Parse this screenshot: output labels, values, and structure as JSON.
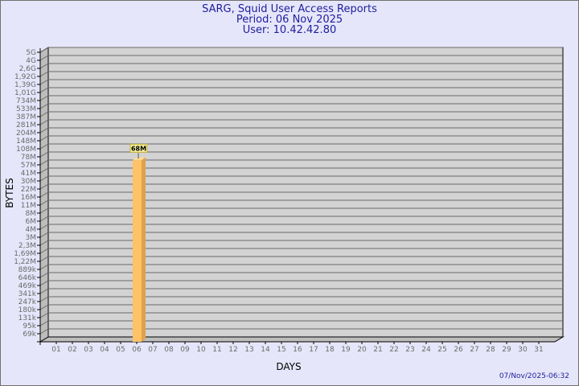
{
  "chart_data": {
    "type": "bar",
    "title": [
      "SARG, Squid User Access Reports",
      "Period: 06 Nov 2025",
      "User: 10.42.42.80"
    ],
    "xlabel": "DAYS",
    "ylabel": "BYTES",
    "yscale": "log",
    "y_tick_labels": [
      "69k",
      "95k",
      "131k",
      "180k",
      "247k",
      "341k",
      "469k",
      "646k",
      "889k",
      "1,22M",
      "1,69M",
      "2,3M",
      "3M",
      "4M",
      "6M",
      "8M",
      "11M",
      "16M",
      "22M",
      "30M",
      "41M",
      "57M",
      "78M",
      "108M",
      "148M",
      "204M",
      "281M",
      "387M",
      "533M",
      "734M",
      "1,01G",
      "1,39G",
      "1,92G",
      "2,6G",
      "4G",
      "5G"
    ],
    "categories": [
      "01",
      "02",
      "03",
      "04",
      "05",
      "06",
      "07",
      "08",
      "09",
      "10",
      "11",
      "12",
      "13",
      "14",
      "15",
      "16",
      "17",
      "18",
      "19",
      "20",
      "21",
      "22",
      "23",
      "24",
      "25",
      "26",
      "27",
      "28",
      "29",
      "30",
      "31"
    ],
    "bars": [
      {
        "category": "06",
        "value": 68000000,
        "label": "68M"
      }
    ],
    "grid": true,
    "colors": {
      "bar": "#ffc266",
      "bar_side": "#e0a24c",
      "plot_bg": "#d3d3d3",
      "page_bg": "#e6e6fa",
      "title": "#1e1e9e",
      "label_bg": "#f5f0a0",
      "label_border": "#c8b030"
    }
  },
  "footer": {
    "timestamp": "07/Nov/2025-06:32"
  }
}
